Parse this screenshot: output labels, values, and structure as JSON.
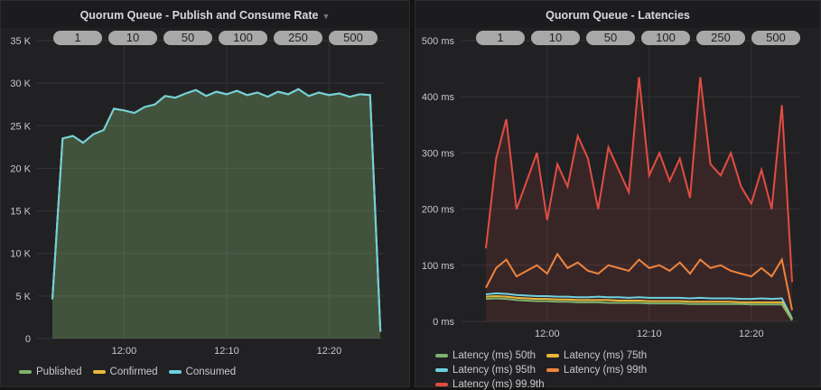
{
  "panels": [
    {
      "title": "Quorum Queue - Publish and Consume Rate",
      "pills": [
        "1",
        "10",
        "50",
        "100",
        "250",
        "500"
      ]
    },
    {
      "title": "Quorum Queue - Latencies",
      "pills": [
        "1",
        "10",
        "50",
        "100",
        "250",
        "500"
      ]
    }
  ],
  "colors": {
    "published": "#7eb26d",
    "confirmed": "#eab839",
    "consumed": "#6ed0e0",
    "p50": "#7eb26d",
    "p75": "#eab839",
    "p95": "#6ed0e0",
    "p99": "#ef843c",
    "p999": "#e24d42"
  },
  "chart_data": [
    {
      "type": "area",
      "ylim": [
        0,
        35000
      ],
      "yticks": [
        "0",
        "5 K",
        "10 K",
        "15 K",
        "20 K",
        "25 K",
        "30 K",
        "35 K"
      ],
      "xticks": [
        "12:00",
        "12:10",
        "12:20"
      ],
      "legend_position": "bottom",
      "grid": true,
      "x": [
        "11:53",
        "11:54",
        "11:55",
        "11:56",
        "11:57",
        "11:58",
        "11:59",
        "12:00",
        "12:01",
        "12:02",
        "12:03",
        "12:04",
        "12:05",
        "12:06",
        "12:07",
        "12:08",
        "12:09",
        "12:10",
        "12:11",
        "12:12",
        "12:13",
        "12:14",
        "12:15",
        "12:16",
        "12:17",
        "12:18",
        "12:19",
        "12:20",
        "12:21",
        "12:22",
        "12:23",
        "12:24",
        "12:25"
      ],
      "series": [
        {
          "name": "Published",
          "values": [
            4600,
            23500,
            23800,
            23000,
            24000,
            24500,
            27000,
            26800,
            26500,
            27200,
            27500,
            28500,
            28300,
            28800,
            29200,
            28500,
            29000,
            28700,
            29100,
            28600,
            28900,
            28400,
            29000,
            28700,
            29300,
            28500,
            28900,
            28600,
            28800,
            28400,
            28700,
            28600,
            800
          ]
        },
        {
          "name": "Confirmed",
          "values": [
            4600,
            23500,
            23800,
            23000,
            24000,
            24500,
            27000,
            26800,
            26500,
            27200,
            27500,
            28500,
            28300,
            28800,
            29200,
            28500,
            29000,
            28700,
            29100,
            28600,
            28900,
            28400,
            29000,
            28700,
            29300,
            28500,
            28900,
            28600,
            28800,
            28400,
            28700,
            28600,
            800
          ]
        },
        {
          "name": "Consumed",
          "values": [
            4600,
            23500,
            23800,
            23000,
            24000,
            24500,
            27000,
            26800,
            26500,
            27200,
            27500,
            28500,
            28300,
            28800,
            29200,
            28500,
            29000,
            28700,
            29100,
            28600,
            28900,
            28400,
            29000,
            28700,
            29300,
            28500,
            28900,
            28600,
            28800,
            28400,
            28700,
            28600,
            800
          ]
        }
      ]
    },
    {
      "type": "line",
      "ylim": [
        0,
        500
      ],
      "yticks": [
        "0 ms",
        "100 ms",
        "200 ms",
        "300 ms",
        "400 ms",
        "500 ms"
      ],
      "xticks": [
        "12:00",
        "12:10",
        "12:20"
      ],
      "legend_position": "bottom",
      "grid": true,
      "x": [
        "11:54",
        "11:55",
        "11:56",
        "11:57",
        "11:58",
        "11:59",
        "12:00",
        "12:01",
        "12:02",
        "12:03",
        "12:04",
        "12:05",
        "12:06",
        "12:07",
        "12:08",
        "12:09",
        "12:10",
        "12:11",
        "12:12",
        "12:13",
        "12:14",
        "12:15",
        "12:16",
        "12:17",
        "12:18",
        "12:19",
        "12:20",
        "12:21",
        "12:22",
        "12:23",
        "12:24"
      ],
      "series": [
        {
          "name": "Latency (ms) 50th",
          "values": [
            40,
            41,
            40,
            38,
            37,
            36,
            36,
            35,
            35,
            34,
            34,
            34,
            33,
            33,
            33,
            33,
            32,
            32,
            32,
            32,
            31,
            31,
            31,
            31,
            31,
            31,
            30,
            30,
            30,
            30,
            2
          ]
        },
        {
          "name": "Latency (ms) 75th",
          "values": [
            44,
            45,
            44,
            42,
            41,
            40,
            40,
            39,
            39,
            38,
            38,
            38,
            38,
            37,
            37,
            37,
            36,
            36,
            36,
            36,
            35,
            35,
            35,
            35,
            35,
            34,
            34,
            34,
            34,
            34,
            3
          ]
        },
        {
          "name": "Latency (ms) 95th",
          "values": [
            48,
            50,
            49,
            47,
            46,
            45,
            45,
            44,
            44,
            43,
            43,
            44,
            43,
            43,
            42,
            43,
            42,
            42,
            42,
            42,
            41,
            42,
            41,
            41,
            41,
            40,
            40,
            41,
            40,
            41,
            5
          ]
        },
        {
          "name": "Latency (ms) 99th",
          "values": [
            60,
            95,
            110,
            80,
            90,
            100,
            85,
            120,
            95,
            105,
            90,
            85,
            100,
            95,
            90,
            110,
            95,
            100,
            90,
            105,
            85,
            110,
            95,
            100,
            90,
            85,
            80,
            95,
            80,
            110,
            20
          ]
        },
        {
          "name": "Latency (ms) 99.9th",
          "values": [
            130,
            290,
            360,
            200,
            250,
            300,
            180,
            280,
            240,
            330,
            290,
            200,
            310,
            270,
            230,
            435,
            260,
            300,
            250,
            290,
            220,
            435,
            280,
            260,
            300,
            240,
            210,
            270,
            200,
            385,
            70
          ]
        }
      ]
    }
  ]
}
